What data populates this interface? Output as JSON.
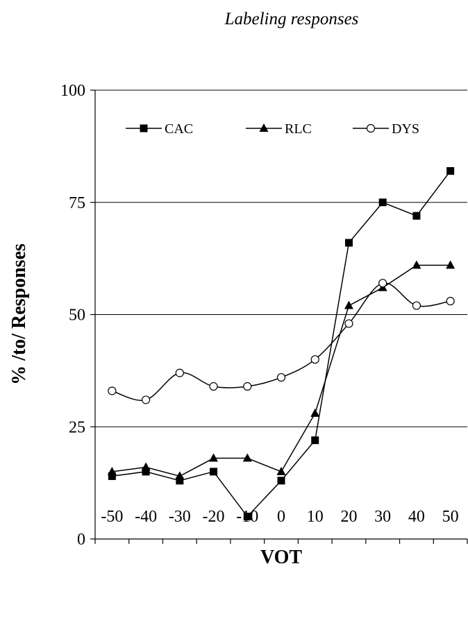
{
  "chart_data": {
    "type": "line",
    "title": "Labeling responses",
    "xlabel": "VOT",
    "ylabel": "% /to/ Responses",
    "x": [
      -50,
      -40,
      -30,
      -20,
      -10,
      0,
      10,
      20,
      30,
      40,
      50
    ],
    "x_tick_labels": [
      "-50",
      "-40",
      "-30",
      "-20",
      "-10",
      "0",
      "10",
      "20",
      "30",
      "40",
      "50"
    ],
    "ylim": [
      0,
      100
    ],
    "y_ticks": [
      0,
      25,
      50,
      75,
      100
    ],
    "y_tick_labels": [
      "0",
      "25",
      "50",
      "75",
      "100"
    ],
    "grid": "horizontal",
    "legend_position": "top",
    "series": [
      {
        "name": "CAC",
        "marker": "filled-square",
        "color": "#000000",
        "values": [
          14,
          15,
          13,
          15,
          5,
          13,
          22,
          66,
          75,
          72,
          82
        ]
      },
      {
        "name": "RLC",
        "marker": "filled-triangle",
        "color": "#000000",
        "values": [
          15,
          16,
          14,
          18,
          18,
          15,
          28,
          52,
          56,
          61,
          61
        ]
      },
      {
        "name": "DYS",
        "marker": "open-circle",
        "color": "#000000",
        "values": [
          33,
          31,
          37,
          34,
          34,
          36,
          40,
          48,
          57,
          52,
          53
        ]
      }
    ]
  }
}
